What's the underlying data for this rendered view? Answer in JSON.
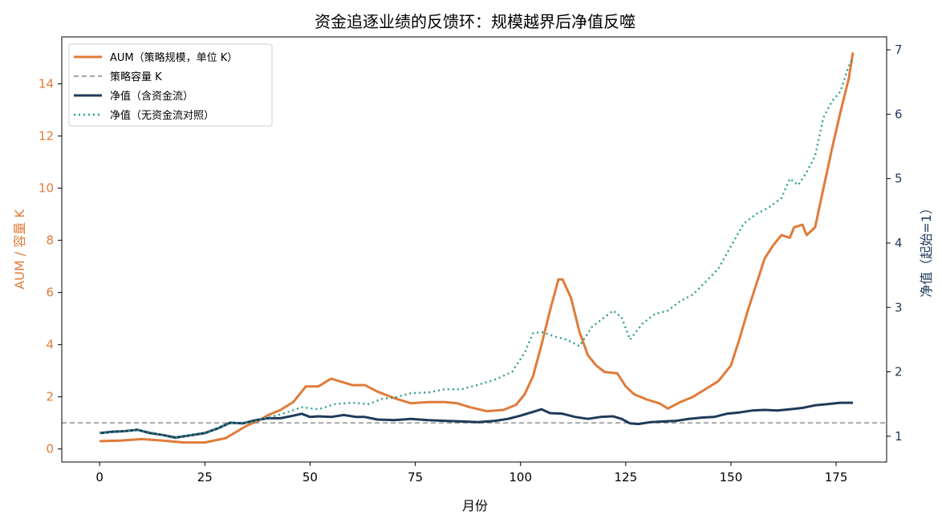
{
  "chart_data": {
    "type": "line",
    "title": "资金追逐业绩的反馈环：规模越界后净值反噬",
    "xlabel": "月份",
    "ylabel_left": "AUM / 容量 K",
    "ylabel_right": "净值（起始=1）",
    "xlim": [
      -9,
      187
    ],
    "ylim_left": [
      -0.5,
      15.8
    ],
    "ylim_right": [
      0.6,
      7.2
    ],
    "xticks": [
      0,
      25,
      50,
      75,
      100,
      125,
      150,
      175
    ],
    "yticks_left": [
      0,
      2,
      4,
      6,
      8,
      10,
      12,
      14
    ],
    "yticks_right": [
      1,
      2,
      3,
      4,
      5,
      6,
      7
    ],
    "grid": false,
    "legend_position": "top-left",
    "colors": {
      "aum": "#e07b39",
      "capacity": "#888888",
      "nav": "#1f3a5a",
      "nav_noflow": "#2a9d8f",
      "left_axis": "#e07b39",
      "right_axis": "#1f3a5a"
    },
    "capacity_value": 1,
    "series": [
      {
        "name": "AUM（策略规模，单位 K）",
        "axis": "left",
        "points": [
          [
            0,
            0.3
          ],
          [
            5,
            0.32
          ],
          [
            10,
            0.38
          ],
          [
            15,
            0.32
          ],
          [
            20,
            0.25
          ],
          [
            25,
            0.25
          ],
          [
            30,
            0.42
          ],
          [
            35,
            0.9
          ],
          [
            38,
            1.1
          ],
          [
            40,
            1.3
          ],
          [
            43,
            1.5
          ],
          [
            46,
            1.8
          ],
          [
            49,
            2.4
          ],
          [
            52,
            2.4
          ],
          [
            55,
            2.7
          ],
          [
            58,
            2.55
          ],
          [
            60,
            2.45
          ],
          [
            63,
            2.45
          ],
          [
            66,
            2.2
          ],
          [
            70,
            1.95
          ],
          [
            74,
            1.75
          ],
          [
            78,
            1.8
          ],
          [
            82,
            1.8
          ],
          [
            85,
            1.75
          ],
          [
            88,
            1.6
          ],
          [
            92,
            1.45
          ],
          [
            96,
            1.5
          ],
          [
            99,
            1.7
          ],
          [
            101,
            2.1
          ],
          [
            103,
            2.8
          ],
          [
            105,
            4.0
          ],
          [
            107,
            5.3
          ],
          [
            109,
            6.5
          ],
          [
            110,
            6.5
          ],
          [
            112,
            5.8
          ],
          [
            114,
            4.5
          ],
          [
            116,
            3.6
          ],
          [
            118,
            3.2
          ],
          [
            120,
            2.95
          ],
          [
            123,
            2.9
          ],
          [
            125,
            2.4
          ],
          [
            127,
            2.1
          ],
          [
            130,
            1.9
          ],
          [
            133,
            1.75
          ],
          [
            135,
            1.55
          ],
          [
            138,
            1.8
          ],
          [
            141,
            2.0
          ],
          [
            144,
            2.3
          ],
          [
            147,
            2.6
          ],
          [
            150,
            3.2
          ],
          [
            152,
            4.2
          ],
          [
            154,
            5.3
          ],
          [
            156,
            6.3
          ],
          [
            158,
            7.3
          ],
          [
            160,
            7.8
          ],
          [
            162,
            8.2
          ],
          [
            164,
            8.1
          ],
          [
            165,
            8.5
          ],
          [
            167,
            8.6
          ],
          [
            168,
            8.2
          ],
          [
            170,
            8.5
          ],
          [
            172,
            10.0
          ],
          [
            174,
            11.5
          ],
          [
            176,
            12.9
          ],
          [
            178,
            14.2
          ],
          [
            179,
            15.2
          ]
        ]
      },
      {
        "name": "策略容量 K",
        "axis": "left",
        "points": [
          [
            -9,
            1
          ],
          [
            187,
            1
          ]
        ]
      },
      {
        "name": "净值（含资金流）",
        "axis": "right",
        "points": [
          [
            0,
            1.05
          ],
          [
            3,
            1.07
          ],
          [
            6,
            1.08
          ],
          [
            9,
            1.1
          ],
          [
            12,
            1.05
          ],
          [
            15,
            1.02
          ],
          [
            18,
            0.98
          ],
          [
            21,
            1.01
          ],
          [
            25,
            1.05
          ],
          [
            28,
            1.12
          ],
          [
            31,
            1.21
          ],
          [
            34,
            1.2
          ],
          [
            37,
            1.25
          ],
          [
            40,
            1.28
          ],
          [
            43,
            1.28
          ],
          [
            46,
            1.32
          ],
          [
            48,
            1.35
          ],
          [
            50,
            1.3
          ],
          [
            52,
            1.31
          ],
          [
            55,
            1.3
          ],
          [
            58,
            1.33
          ],
          [
            61,
            1.3
          ],
          [
            63,
            1.3
          ],
          [
            66,
            1.26
          ],
          [
            70,
            1.25
          ],
          [
            74,
            1.27
          ],
          [
            78,
            1.25
          ],
          [
            82,
            1.24
          ],
          [
            86,
            1.23
          ],
          [
            90,
            1.22
          ],
          [
            94,
            1.24
          ],
          [
            97,
            1.27
          ],
          [
            100,
            1.32
          ],
          [
            103,
            1.38
          ],
          [
            105,
            1.42
          ],
          [
            107,
            1.36
          ],
          [
            110,
            1.35
          ],
          [
            113,
            1.3
          ],
          [
            116,
            1.27
          ],
          [
            119,
            1.3
          ],
          [
            122,
            1.31
          ],
          [
            124,
            1.27
          ],
          [
            126,
            1.2
          ],
          [
            128,
            1.19
          ],
          [
            131,
            1.22
          ],
          [
            134,
            1.23
          ],
          [
            137,
            1.24
          ],
          [
            140,
            1.27
          ],
          [
            143,
            1.29
          ],
          [
            146,
            1.3
          ],
          [
            149,
            1.35
          ],
          [
            152,
            1.37
          ],
          [
            155,
            1.4
          ],
          [
            158,
            1.41
          ],
          [
            161,
            1.4
          ],
          [
            164,
            1.42
          ],
          [
            167,
            1.44
          ],
          [
            170,
            1.48
          ],
          [
            173,
            1.5
          ],
          [
            176,
            1.52
          ],
          [
            179,
            1.52
          ]
        ]
      },
      {
        "name": "净值（无资金流对照）",
        "axis": "right",
        "points": [
          [
            0,
            1.05
          ],
          [
            5,
            1.07
          ],
          [
            9,
            1.1
          ],
          [
            13,
            1.05
          ],
          [
            17,
            0.98
          ],
          [
            21,
            1.01
          ],
          [
            26,
            1.07
          ],
          [
            31,
            1.2
          ],
          [
            36,
            1.22
          ],
          [
            40,
            1.29
          ],
          [
            44,
            1.36
          ],
          [
            48,
            1.45
          ],
          [
            52,
            1.42
          ],
          [
            56,
            1.5
          ],
          [
            60,
            1.52
          ],
          [
            64,
            1.5
          ],
          [
            67,
            1.58
          ],
          [
            70,
            1.6
          ],
          [
            74,
            1.67
          ],
          [
            78,
            1.68
          ],
          [
            82,
            1.73
          ],
          [
            86,
            1.73
          ],
          [
            90,
            1.8
          ],
          [
            94,
            1.88
          ],
          [
            98,
            2.0
          ],
          [
            101,
            2.3
          ],
          [
            103,
            2.6
          ],
          [
            105,
            2.62
          ],
          [
            108,
            2.55
          ],
          [
            111,
            2.5
          ],
          [
            114,
            2.4
          ],
          [
            117,
            2.7
          ],
          [
            120,
            2.85
          ],
          [
            122,
            2.95
          ],
          [
            124,
            2.85
          ],
          [
            126,
            2.5
          ],
          [
            129,
            2.75
          ],
          [
            132,
            2.9
          ],
          [
            135,
            2.95
          ],
          [
            138,
            3.1
          ],
          [
            141,
            3.2
          ],
          [
            144,
            3.4
          ],
          [
            147,
            3.6
          ],
          [
            150,
            3.95
          ],
          [
            153,
            4.3
          ],
          [
            156,
            4.45
          ],
          [
            159,
            4.55
          ],
          [
            162,
            4.7
          ],
          [
            164,
            5.0
          ],
          [
            166,
            4.9
          ],
          [
            168,
            5.1
          ],
          [
            170,
            5.35
          ],
          [
            172,
            5.95
          ],
          [
            174,
            6.2
          ],
          [
            176,
            6.35
          ],
          [
            178,
            6.75
          ],
          [
            179,
            6.85
          ]
        ]
      }
    ]
  }
}
